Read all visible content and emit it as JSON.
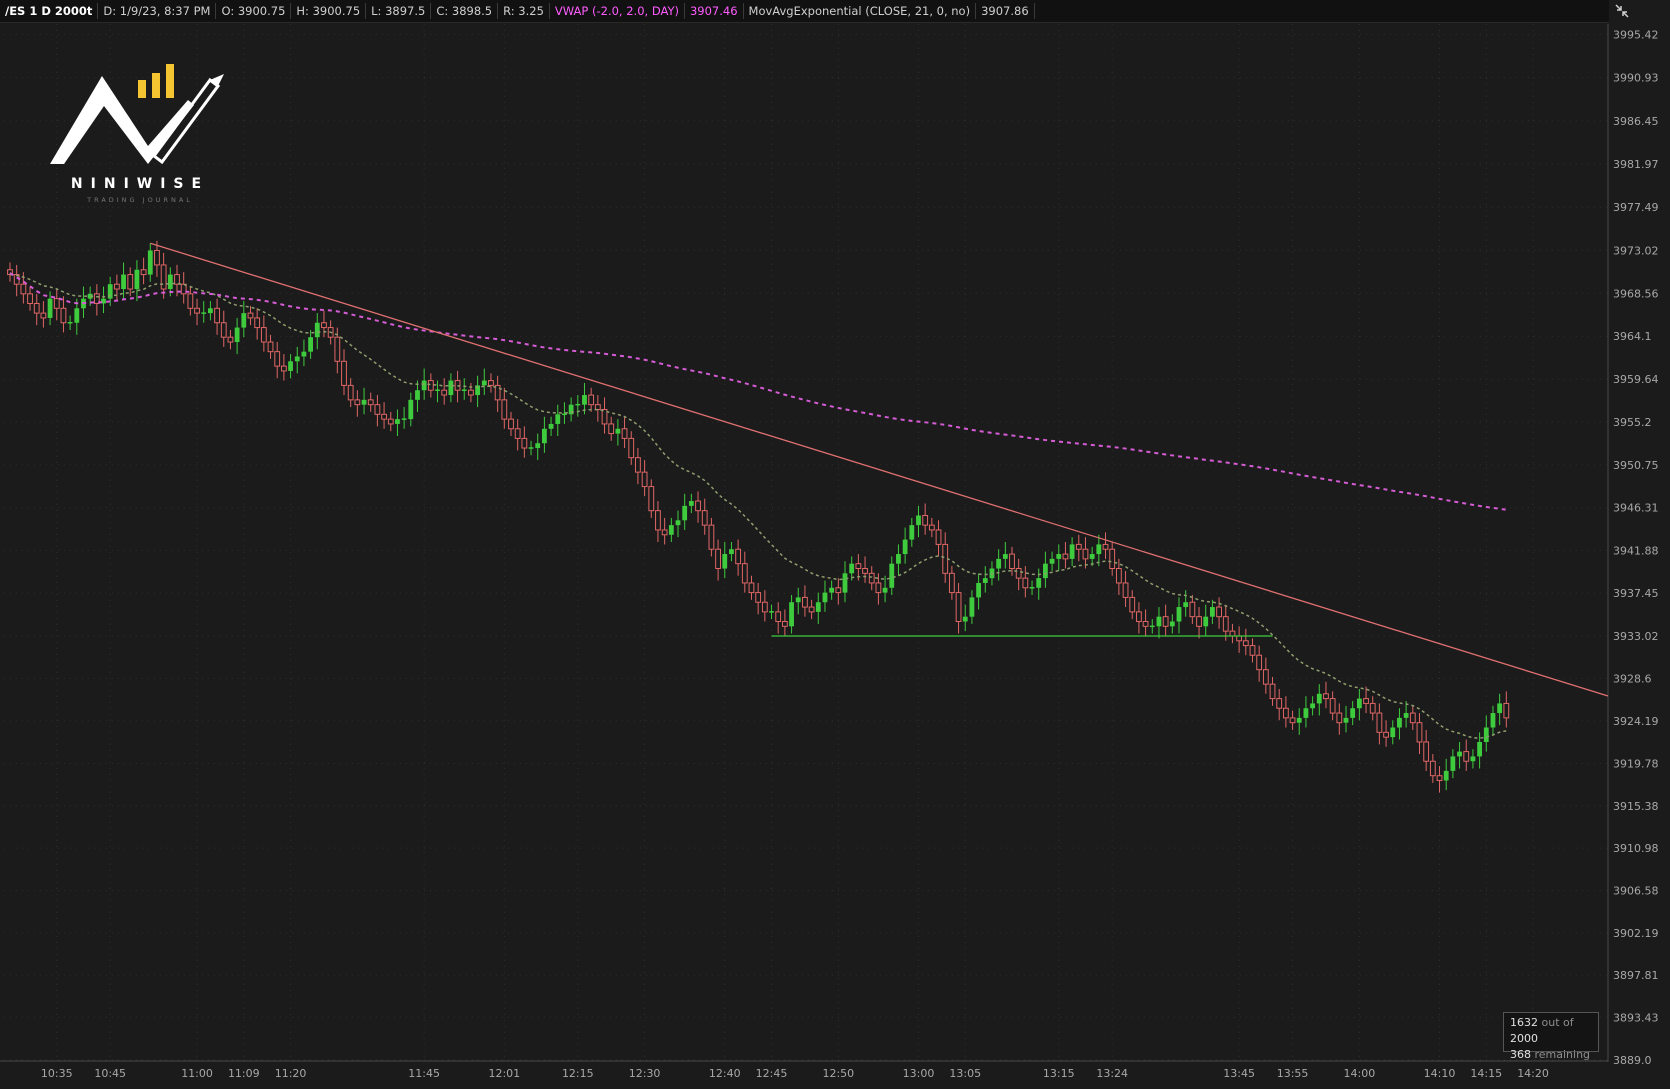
{
  "header": {
    "symbol": "/ES 1 D 2000t",
    "date": "D: 1/9/23, 8:37 PM",
    "open": "O: 3900.75",
    "high": "H: 3900.75",
    "low": "L: 3897.5",
    "close": "C: 3898.5",
    "range": "R: 3.25",
    "vwap_label": "VWAP (-2.0, 2.0, DAY)",
    "vwap_value": "3907.46",
    "ema_label": "MovAvgExponential (CLOSE, 21, 0, no)",
    "ema_value": "3907.86"
  },
  "logo": {
    "word": "NINIWISE",
    "tagline": "TRADING JOURNAL"
  },
  "counter": {
    "used": "1632",
    "out_of": "out of",
    "total": "2000",
    "remaining_count": "368",
    "remaining_word": "remaining"
  },
  "colors": {
    "up": "#3ecc3e",
    "down": "#e06666",
    "vwap": "#d65cd6",
    "ema": "#8f9e6e",
    "trendline": "#e07070",
    "support": "#3ecc3e",
    "background": "#1b1b1b"
  },
  "chart_data": {
    "type": "candlestick",
    "ylim": [
      3889.0,
      3996.5
    ],
    "y_ticks": [
      "3995.42",
      "3990.93",
      "3986.45",
      "3981.97",
      "3977.49",
      "3973.02",
      "3968.56",
      "3964.1",
      "3959.64",
      "3955.2",
      "3950.75",
      "3946.31",
      "3941.88",
      "3937.45",
      "3933.02",
      "3928.6",
      "3924.19",
      "3919.78",
      "3915.38",
      "3910.98",
      "3906.58",
      "3902.19",
      "3897.81",
      "3893.43",
      "3889.0"
    ],
    "x_ticks": [
      {
        "label": "10:35",
        "bar": 7
      },
      {
        "label": "10:45",
        "bar": 15
      },
      {
        "label": "11:00",
        "bar": 28
      },
      {
        "label": "11:09",
        "bar": 35
      },
      {
        "label": "11:20",
        "bar": 42
      },
      {
        "label": "11:45",
        "bar": 62
      },
      {
        "label": "12:01",
        "bar": 74
      },
      {
        "label": "12:15",
        "bar": 85
      },
      {
        "label": "12:30",
        "bar": 95
      },
      {
        "label": "12:40",
        "bar": 107
      },
      {
        "label": "12:45",
        "bar": 114
      },
      {
        "label": "12:50",
        "bar": 124
      },
      {
        "label": "13:00",
        "bar": 136
      },
      {
        "label": "13:05",
        "bar": 143
      },
      {
        "label": "13:15",
        "bar": 157
      },
      {
        "label": "13:24",
        "bar": 165
      },
      {
        "label": "13:45",
        "bar": 184
      },
      {
        "label": "13:55",
        "bar": 192
      },
      {
        "label": "14:00",
        "bar": 202
      },
      {
        "label": "14:10",
        "bar": 214
      },
      {
        "label": "14:15",
        "bar": 221
      },
      {
        "label": "14:20",
        "bar": 228
      }
    ],
    "closes": [
      3970.5,
      3969.5,
      3968.5,
      3967.5,
      3966.5,
      3966.0,
      3968.0,
      3967.0,
      3965.5,
      3965.5,
      3967.0,
      3968.0,
      3968.5,
      3967.5,
      3968.0,
      3969.5,
      3969.0,
      3970.5,
      3969.0,
      3971.0,
      3970.5,
      3973.0,
      3971.5,
      3969.0,
      3970.5,
      3969.5,
      3968.5,
      3967.0,
      3966.5,
      3966.5,
      3967.0,
      3965.5,
      3964.0,
      3963.5,
      3965.0,
      3966.5,
      3966.0,
      3965.0,
      3963.5,
      3962.5,
      3961.0,
      3960.5,
      3961.5,
      3962.0,
      3962.5,
      3964.0,
      3965.5,
      3965.0,
      3964.0,
      3961.5,
      3959.0,
      3957.5,
      3957.0,
      3957.5,
      3957.0,
      3956.0,
      3955.5,
      3955.0,
      3955.5,
      3955.5,
      3957.5,
      3958.5,
      3959.5,
      3958.5,
      3958.5,
      3958.0,
      3959.5,
      3958.5,
      3958.5,
      3958.0,
      3959.0,
      3959.5,
      3959.0,
      3957.5,
      3955.5,
      3954.5,
      3953.5,
      3952.5,
      3952.5,
      3953.0,
      3954.5,
      3955.0,
      3956.0,
      3956.0,
      3957.0,
      3957.0,
      3958.0,
      3957.0,
      3956.5,
      3955.0,
      3954.0,
      3954.5,
      3953.5,
      3951.5,
      3950.0,
      3948.5,
      3946.0,
      3944.0,
      3943.5,
      3944.5,
      3945.0,
      3946.5,
      3947.0,
      3946.0,
      3944.5,
      3942.0,
      3940.0,
      3941.5,
      3942.0,
      3940.5,
      3938.5,
      3937.5,
      3936.5,
      3935.5,
      3935.5,
      3934.5,
      3934.0,
      3936.5,
      3937.0,
      3936.0,
      3935.5,
      3936.5,
      3937.5,
      3938.0,
      3937.5,
      3939.5,
      3940.5,
      3940.0,
      3939.5,
      3938.5,
      3937.5,
      3938.0,
      3940.5,
      3941.5,
      3943.0,
      3944.5,
      3945.5,
      3944.5,
      3944.0,
      3942.5,
      3939.5,
      3937.5,
      3934.5,
      3935.0,
      3937.0,
      3938.5,
      3939.0,
      3940.0,
      3941.0,
      3941.5,
      3940.0,
      3939.0,
      3938.0,
      3938.0,
      3939.0,
      3940.5,
      3941.0,
      3941.5,
      3941.0,
      3942.5,
      3942.0,
      3941.0,
      3941.5,
      3942.5,
      3942.0,
      3940.0,
      3938.5,
      3937.0,
      3935.5,
      3934.5,
      3934.0,
      3934.0,
      3935.0,
      3934.0,
      3934.5,
      3936.0,
      3936.5,
      3935.0,
      3934.0,
      3935.0,
      3936.0,
      3935.0,
      3933.5,
      3933.0,
      3932.5,
      3932.0,
      3931.0,
      3929.5,
      3928.0,
      3926.5,
      3925.5,
      3924.5,
      3924.0,
      3924.5,
      3925.5,
      3926.0,
      3927.0,
      3926.5,
      3925.0,
      3924.0,
      3924.5,
      3925.5,
      3926.5,
      3926.0,
      3925.0,
      3923.0,
      3922.5,
      3923.5,
      3924.5,
      3925.0,
      3924.0,
      3922.0,
      3920.0,
      3918.5,
      3918.0,
      3919.0,
      3920.5,
      3921.0,
      3920.0,
      3920.5,
      3922.0,
      3923.5,
      3925.0,
      3926.0,
      3924.5
    ]
  }
}
